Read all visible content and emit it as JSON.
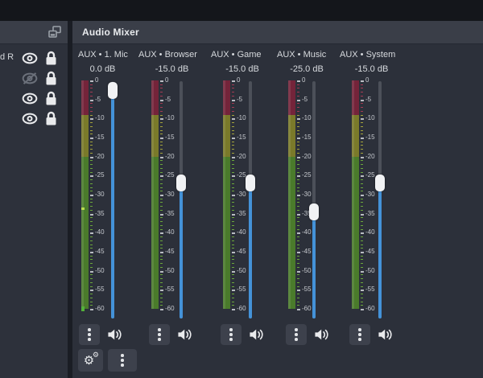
{
  "window": {
    "top_strip": ""
  },
  "sources_panel": {
    "header_icon": "overlapping-panes-icon",
    "rows": [
      {
        "label": "d R",
        "visible": true,
        "locked": true
      },
      {
        "label": "",
        "visible": false,
        "locked": true
      },
      {
        "label": "",
        "visible": true,
        "locked": true
      },
      {
        "label": "",
        "visible": true,
        "locked": true
      }
    ]
  },
  "mixer": {
    "title": "Audio Mixer",
    "channels": [
      {
        "name": "AUX • 1. Mic",
        "volume": "0.0 dB",
        "slider_pct": 4,
        "peak_db": -33.5,
        "level_nub": true
      },
      {
        "name": "AUX • Browser",
        "volume": "-15.0 dB",
        "slider_pct": 43,
        "peak_db": null,
        "level_nub": false
      },
      {
        "name": "AUX • Game",
        "volume": "-15.0 dB",
        "slider_pct": 43,
        "peak_db": null,
        "level_nub": false
      },
      {
        "name": "AUX • Music",
        "volume": "-25.0 dB",
        "slider_pct": 55,
        "peak_db": null,
        "level_nub": false
      },
      {
        "name": "AUX • System",
        "volume": "-15.0 dB",
        "slider_pct": 43,
        "peak_db": null,
        "level_nub": false
      }
    ],
    "meter": {
      "max_db": 0,
      "min_db": -60,
      "labels": [
        0,
        -5,
        -10,
        -15,
        -20,
        -25,
        -30,
        -35,
        -40,
        -45,
        -50,
        -55,
        -60
      ],
      "zones": [
        {
          "from": 0,
          "to": -9,
          "color": "#74243a",
          "tick": "#a43a52"
        },
        {
          "from": -9,
          "to": -20,
          "color": "#7a7a2a",
          "tick": "#a3a33a"
        },
        {
          "from": -20,
          "to": -60,
          "color": "#4a7b2b",
          "tick": "#6aa73a"
        }
      ]
    },
    "icons": {
      "channel_menu": "kebab-menu-icon",
      "mute": "speaker-icon",
      "settings": "gear-icon",
      "footer_menu": "kebab-menu-icon"
    },
    "colors": {
      "slider_blue": "#4492d8",
      "handle_white": "#f1f2f4",
      "meter_red": "#74243a",
      "meter_yellow": "#7a7a2a",
      "meter_green": "#4a7b2b",
      "peak_bright": "#b9dd4e"
    }
  }
}
